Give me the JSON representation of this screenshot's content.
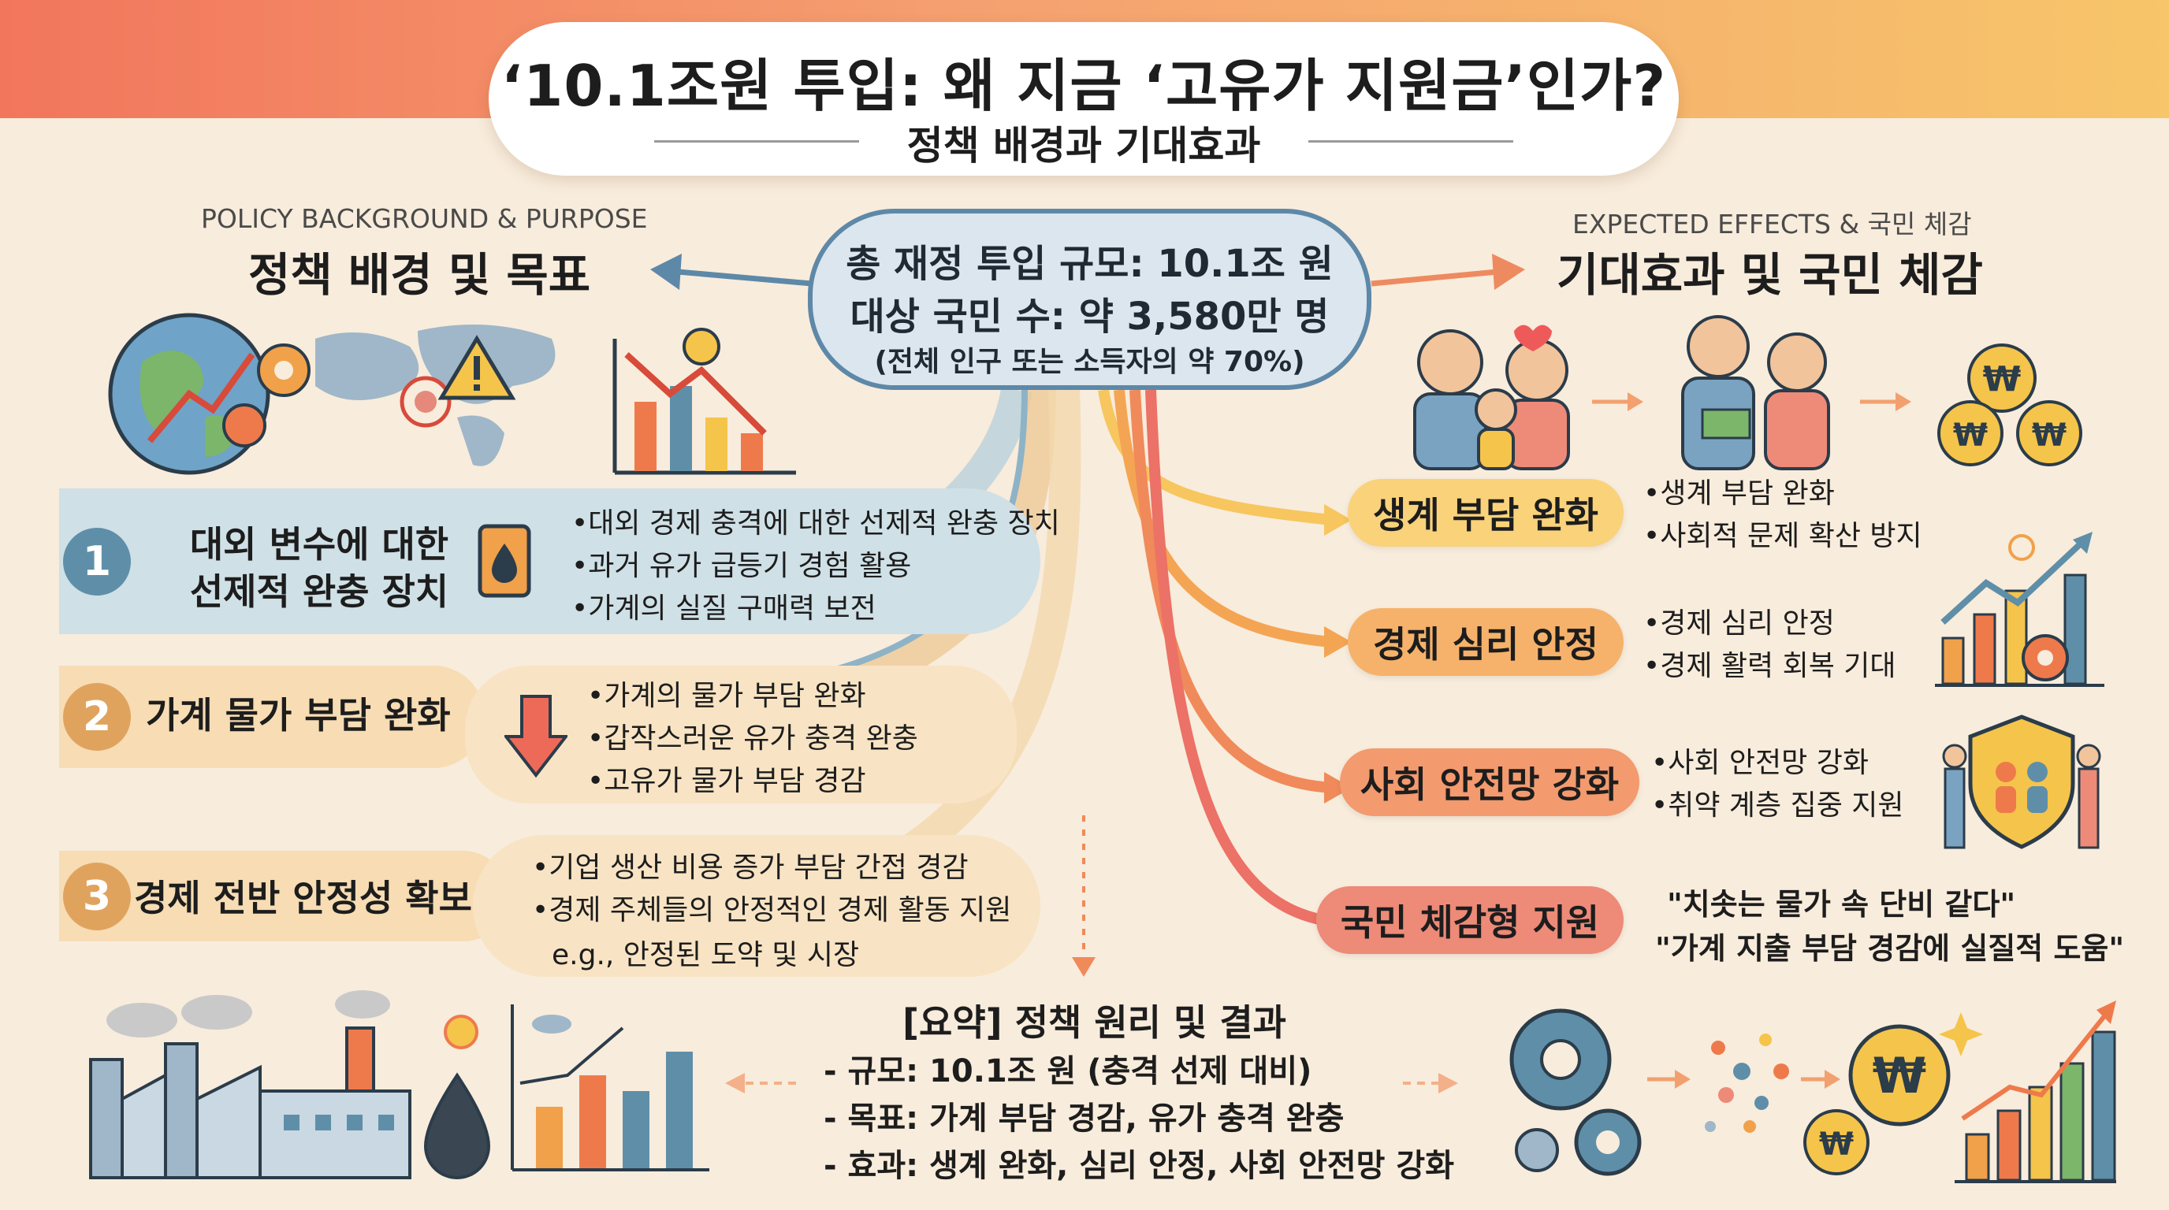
{
  "header": {
    "title": "‘10.1조원 투입: 왜 지금 ‘고유가 지원금’인가?",
    "subtitle": "정책 배경과 기대효과"
  },
  "center": {
    "line1": "총 재정 투입 규모: 10.1조 원",
    "line2": "대상 국민 수: 약 3,580만 명",
    "line3": "(전체 인구 또는 소득자의 약 70%)"
  },
  "left_section": {
    "en_label": "POLICY BACKGROUND & PURPOSE",
    "ko_label": "정책 배경 및 목표",
    "items": [
      {
        "number": "1",
        "title_line1": "대외 변수에 대한",
        "title_line2": "선제적 완충 장치",
        "icon": "oil-barrel-icon",
        "bullets": [
          "대외 경제 충격에 대한 선제적 완충 장치",
          "과거 유가 급등기 경험 활용",
          "가계의 실질 구매력 보전"
        ]
      },
      {
        "number": "2",
        "title_line1": "가계 물가 부담 완화",
        "icon": "down-arrow-icon",
        "bullets": [
          "가계의 물가 부담 완화",
          "갑작스러운 유가 충격 완충",
          "고유가 물가 부담 경감"
        ]
      },
      {
        "number": "3",
        "title_line1": "경제 전반 안정성 확보",
        "bullets": [
          "기업 생산 비용 증가 부담 간접 경감",
          "경제 주체들의 안정적인 경제 활동 지원"
        ],
        "note": "e.g., 안정된 도약 및 시장"
      }
    ]
  },
  "right_section": {
    "en_label": "EXPECTED EFFECTS & 국민 체감",
    "ko_label": "기대효과 및 국민 체감",
    "effects": [
      {
        "label": "생계 부담 완화",
        "color": "#f9d27a",
        "bullets": [
          "생계 부담 완화",
          "사회적 문제 확산 방지"
        ]
      },
      {
        "label": "경제 심리 안정",
        "color": "#f6b26b",
        "bullets": [
          "경제 심리 안정",
          "경제 활력 회복 기대"
        ]
      },
      {
        "label": "사회 안전망 강화",
        "color": "#f39a6e",
        "bullets": [
          "사회 안전망 강화",
          "취약 계층 집중 지원"
        ]
      },
      {
        "label": "국민 체감형 지원",
        "color": "#ee8a78",
        "quotes": [
          "\"치솟는 물가 속 단비 같다\"",
          "\"가계 지출 부담 경감에 실질적 도움\""
        ]
      }
    ]
  },
  "summary": {
    "title": "[요약] 정책 원리 및 결과",
    "items": [
      "규모: 10.1조 원 (충격 선제 대비)",
      "목표: 가계 부담 경감, 유가 충격 완충",
      "효과: 생계 완화, 심리 안정, 사회 안전망 강화"
    ]
  },
  "colors": {
    "band1": "#cfe0e6",
    "band2": "#f7dcb4",
    "band3": "#f8e4c4",
    "circle1": "#5f8fa8",
    "circle2": "#e0a35e",
    "circle3": "#e0a35e",
    "accent_blue": "#5e88a8"
  }
}
